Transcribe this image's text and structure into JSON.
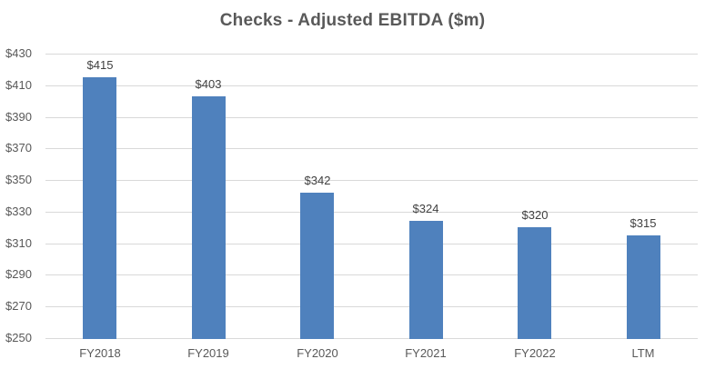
{
  "chart_data": {
    "type": "bar",
    "title": "Checks - Adjusted EBITDA ($m)",
    "categories": [
      "FY2018",
      "FY2019",
      "FY2020",
      "FY2021",
      "FY2022",
      "LTM"
    ],
    "values": [
      415,
      403,
      342,
      324,
      320,
      315
    ],
    "data_labels": [
      "$415",
      "$403",
      "$342",
      "$324",
      "$320",
      "$315"
    ],
    "xlabel": "",
    "ylabel": "",
    "ylim": [
      250,
      430
    ],
    "ytick_step": 20,
    "ytick_labels": [
      "$250",
      "$270",
      "$290",
      "$310",
      "$330",
      "$350",
      "$370",
      "$390",
      "$410",
      "$430"
    ],
    "grid": "horizontal",
    "legend": "none",
    "colors": {
      "bar": "#4F81BD",
      "gridline": "#D9D9D9",
      "axis_line": "#D9D9D9",
      "title_text": "#595959",
      "axis_text": "#595959",
      "data_label_text": "#404040",
      "background": "#FFFFFF"
    }
  }
}
